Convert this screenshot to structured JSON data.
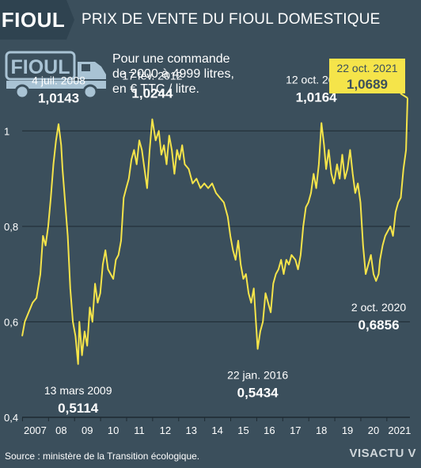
{
  "header": {
    "badge": "FIOUL",
    "title": "PRIX DE VENTE DU FIOUL DOMESTIQUE"
  },
  "icon": {
    "name": "truck-icon",
    "label": "FIOUL"
  },
  "subtitle_lines": [
    "Pour une commande",
    "de 2000 à 4999 litres,",
    "en € TTC / litre."
  ],
  "source": "Source : ministère de la Transition écologique.",
  "brand": {
    "part1": "VISACTU",
    "mark": "V"
  },
  "colors": {
    "background": "#3b4f5c",
    "line": "#f5e44a",
    "grid": "#1e2a32",
    "highlight": "#f5e44a"
  },
  "chart_data": {
    "type": "line",
    "title": "PRIX DE VENTE DU FIOUL DOMESTIQUE",
    "xlabel": "",
    "ylabel": "",
    "ylim": [
      0.4,
      1.1
    ],
    "xlim": [
      2007.0,
      2021.9
    ],
    "yticks": [
      {
        "value": 0.4,
        "label": "0,4"
      },
      {
        "value": 0.6,
        "label": "0,6"
      },
      {
        "value": 0.8,
        "label": "0,8"
      },
      {
        "value": 1.0,
        "label": "1"
      }
    ],
    "xticks": [
      {
        "value": 2007.5,
        "label": "2007"
      },
      {
        "value": 2008.5,
        "label": "08"
      },
      {
        "value": 2009.5,
        "label": "09"
      },
      {
        "value": 2010.5,
        "label": "10"
      },
      {
        "value": 2011.5,
        "label": "11"
      },
      {
        "value": 2012.5,
        "label": "12"
      },
      {
        "value": 2013.5,
        "label": "13"
      },
      {
        "value": 2014.5,
        "label": "14"
      },
      {
        "value": 2015.5,
        "label": "15"
      },
      {
        "value": 2016.5,
        "label": "16"
      },
      {
        "value": 2017.5,
        "label": "17"
      },
      {
        "value": 2018.5,
        "label": "18"
      },
      {
        "value": 2019.5,
        "label": "19"
      },
      {
        "value": 2020.5,
        "label": "20"
      },
      {
        "value": 2021.5,
        "label": "2021"
      }
    ],
    "series": [
      {
        "x": [
          2007.0,
          2007.1,
          2007.25,
          2007.4,
          2007.55,
          2007.7,
          2007.8,
          2007.9,
          2008.0,
          2008.1,
          2008.2,
          2008.3,
          2008.4,
          2008.5,
          2008.55,
          2008.65,
          2008.75,
          2008.85,
          2008.95,
          2009.05,
          2009.15,
          2009.2,
          2009.3,
          2009.4,
          2009.5,
          2009.6,
          2009.7,
          2009.8,
          2009.9,
          2010.0,
          2010.1,
          2010.2,
          2010.3,
          2010.4,
          2010.5,
          2010.6,
          2010.7,
          2010.8,
          2010.9,
          2011.0,
          2011.1,
          2011.2,
          2011.3,
          2011.4,
          2011.5,
          2011.6,
          2011.7,
          2011.8,
          2011.9,
          2012.0,
          2012.13,
          2012.25,
          2012.35,
          2012.45,
          2012.55,
          2012.65,
          2012.75,
          2012.85,
          2012.95,
          2013.05,
          2013.15,
          2013.25,
          2013.4,
          2013.55,
          2013.7,
          2013.85,
          2014.0,
          2014.15,
          2014.3,
          2014.45,
          2014.6,
          2014.75,
          2014.9,
          2015.0,
          2015.1,
          2015.2,
          2015.3,
          2015.4,
          2015.5,
          2015.6,
          2015.7,
          2015.8,
          2015.9,
          2016.05,
          2016.15,
          2016.25,
          2016.35,
          2016.45,
          2016.55,
          2016.65,
          2016.75,
          2016.85,
          2016.95,
          2017.05,
          2017.15,
          2017.25,
          2017.35,
          2017.5,
          2017.6,
          2017.7,
          2017.8,
          2017.9,
          2018.0,
          2018.1,
          2018.2,
          2018.3,
          2018.4,
          2018.5,
          2018.6,
          2018.68,
          2018.78,
          2018.88,
          2018.98,
          2019.1,
          2019.2,
          2019.3,
          2019.4,
          2019.5,
          2019.6,
          2019.7,
          2019.8,
          2019.9,
          2020.0,
          2020.1,
          2020.2,
          2020.3,
          2020.4,
          2020.5,
          2020.6,
          2020.7,
          2020.75,
          2020.85,
          2020.95,
          2021.05,
          2021.15,
          2021.25,
          2021.35,
          2021.45,
          2021.55,
          2021.65,
          2021.75,
          2021.81
        ],
        "y": [
          0.57,
          0.6,
          0.62,
          0.64,
          0.65,
          0.7,
          0.78,
          0.76,
          0.8,
          0.86,
          0.93,
          0.98,
          1.0143,
          0.97,
          0.92,
          0.85,
          0.78,
          0.67,
          0.6,
          0.57,
          0.5114,
          0.6,
          0.53,
          0.58,
          0.55,
          0.63,
          0.6,
          0.68,
          0.64,
          0.66,
          0.72,
          0.75,
          0.71,
          0.7,
          0.69,
          0.73,
          0.74,
          0.77,
          0.86,
          0.88,
          0.9,
          0.94,
          0.96,
          0.93,
          0.98,
          0.96,
          0.92,
          0.88,
          0.96,
          1.0244,
          0.98,
          1.0,
          0.95,
          0.97,
          0.93,
          0.99,
          0.96,
          0.91,
          0.96,
          0.94,
          0.97,
          0.93,
          0.92,
          0.89,
          0.9,
          0.88,
          0.89,
          0.88,
          0.89,
          0.87,
          0.86,
          0.85,
          0.82,
          0.78,
          0.75,
          0.73,
          0.77,
          0.72,
          0.69,
          0.7,
          0.66,
          0.64,
          0.67,
          0.5434,
          0.58,
          0.6,
          0.66,
          0.64,
          0.62,
          0.68,
          0.7,
          0.71,
          0.73,
          0.7,
          0.73,
          0.72,
          0.74,
          0.73,
          0.71,
          0.74,
          0.8,
          0.84,
          0.85,
          0.87,
          0.91,
          0.88,
          0.93,
          1.0164,
          0.97,
          0.92,
          0.96,
          0.91,
          0.89,
          0.93,
          0.9,
          0.95,
          0.9,
          0.92,
          0.96,
          0.91,
          0.87,
          0.89,
          0.85,
          0.76,
          0.7,
          0.72,
          0.74,
          0.7,
          0.6856,
          0.7,
          0.73,
          0.76,
          0.78,
          0.79,
          0.8,
          0.78,
          0.83,
          0.85,
          0.86,
          0.92,
          0.96,
          1.0689
        ]
      }
    ],
    "annotations": [
      {
        "date": "4 juil. 2008",
        "value": "1,0143",
        "x": 2008.4,
        "y": 1.0143,
        "placement": "above"
      },
      {
        "date": "17 fév. 2012",
        "value": "1,0244",
        "x": 2012.0,
        "y": 1.0244,
        "placement": "above"
      },
      {
        "date": "13 mars 2009",
        "value": "0,5114",
        "x": 2009.15,
        "y": 0.5114,
        "placement": "below"
      },
      {
        "date": "12 oct. 2018",
        "value": "1,0164",
        "x": 2018.3,
        "y": 1.0164,
        "placement": "above"
      },
      {
        "date": "22 jan. 2016",
        "value": "0,5434",
        "x": 2016.05,
        "y": 0.5434,
        "placement": "below"
      },
      {
        "date": "2 oct. 2020",
        "value": "0,6856",
        "x": 2020.7,
        "y": 0.6856,
        "placement": "below"
      },
      {
        "date": "22 oct. 2021",
        "value": "1,0689",
        "x": 2021.81,
        "y": 1.0689,
        "placement": "highlight"
      }
    ]
  }
}
